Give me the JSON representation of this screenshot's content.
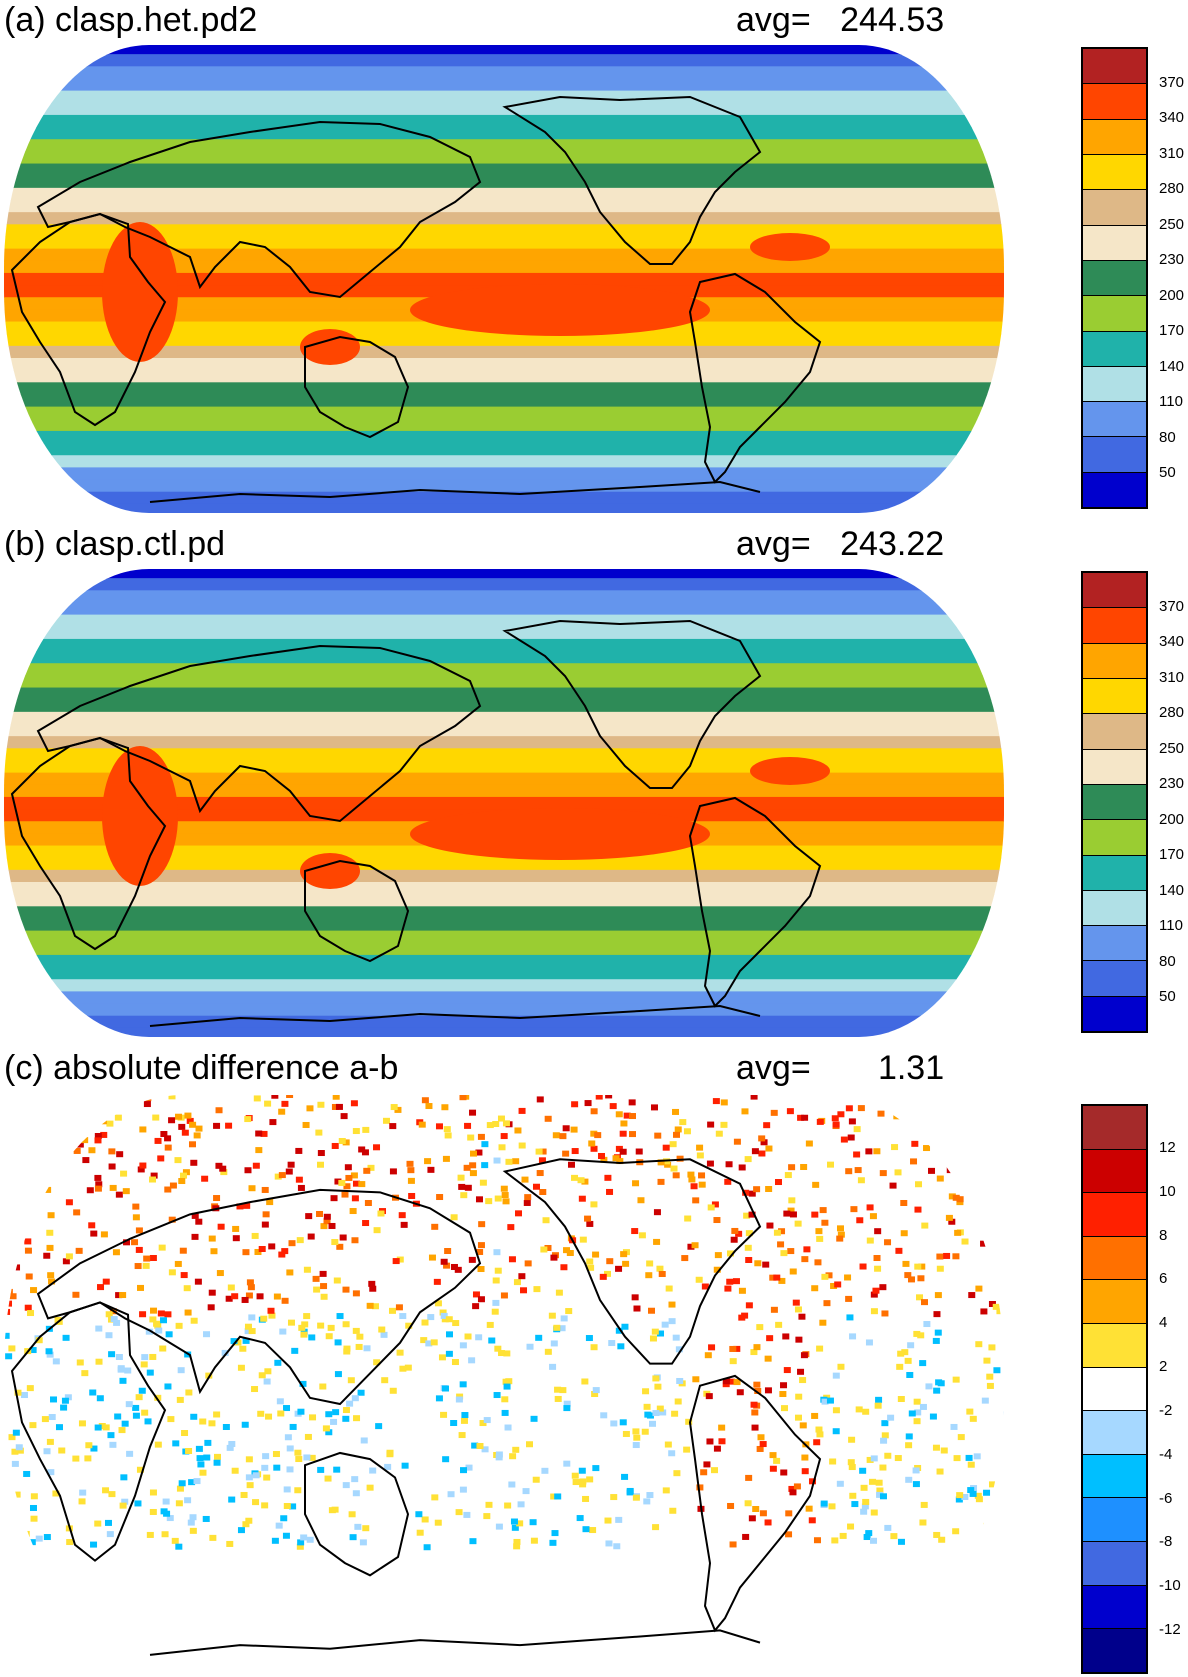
{
  "panels": [
    {
      "title": "(a) clasp.het.pd2",
      "avg_label": "avg=",
      "avg_value": "244.53",
      "colorbar": {
        "labels": [
          "370",
          "340",
          "310",
          "280",
          "250",
          "230",
          "200",
          "170",
          "140",
          "110",
          "80",
          "50"
        ],
        "colors": [
          "#b22222",
          "#ff4500",
          "#ffa500",
          "#ffd700",
          "#deb887",
          "#f5e6c8",
          "#2e8b57",
          "#9acd32",
          "#20b2aa",
          "#b0e0e6",
          "#6495ed",
          "#4169e1",
          "#0000cd"
        ]
      }
    },
    {
      "title": "(b) clasp.ctl.pd",
      "avg_label": "avg=",
      "avg_value": "243.22",
      "colorbar": {
        "labels": [
          "370",
          "340",
          "310",
          "280",
          "250",
          "230",
          "200",
          "170",
          "140",
          "110",
          "80",
          "50"
        ],
        "colors": [
          "#b22222",
          "#ff4500",
          "#ffa500",
          "#ffd700",
          "#deb887",
          "#f5e6c8",
          "#2e8b57",
          "#9acd32",
          "#20b2aa",
          "#b0e0e6",
          "#6495ed",
          "#4169e1",
          "#0000cd"
        ]
      }
    },
    {
      "title": "(c) absolute difference a-b",
      "avg_label": "avg=",
      "avg_value": "1.31",
      "colorbar": {
        "labels": [
          "12",
          "10",
          "8",
          "6",
          "4",
          "2",
          "-2",
          "-4",
          "-6",
          "-8",
          "-10",
          "-12"
        ],
        "colors": [
          "#a52a2a",
          "#cc0000",
          "#ff2000",
          "#ff7000",
          "#ffa500",
          "#ffe135",
          "#ffffff",
          "#a6d8ff",
          "#00bfff",
          "#1e90ff",
          "#4169e1",
          "#0000cd",
          "#00008b"
        ]
      }
    }
  ]
}
